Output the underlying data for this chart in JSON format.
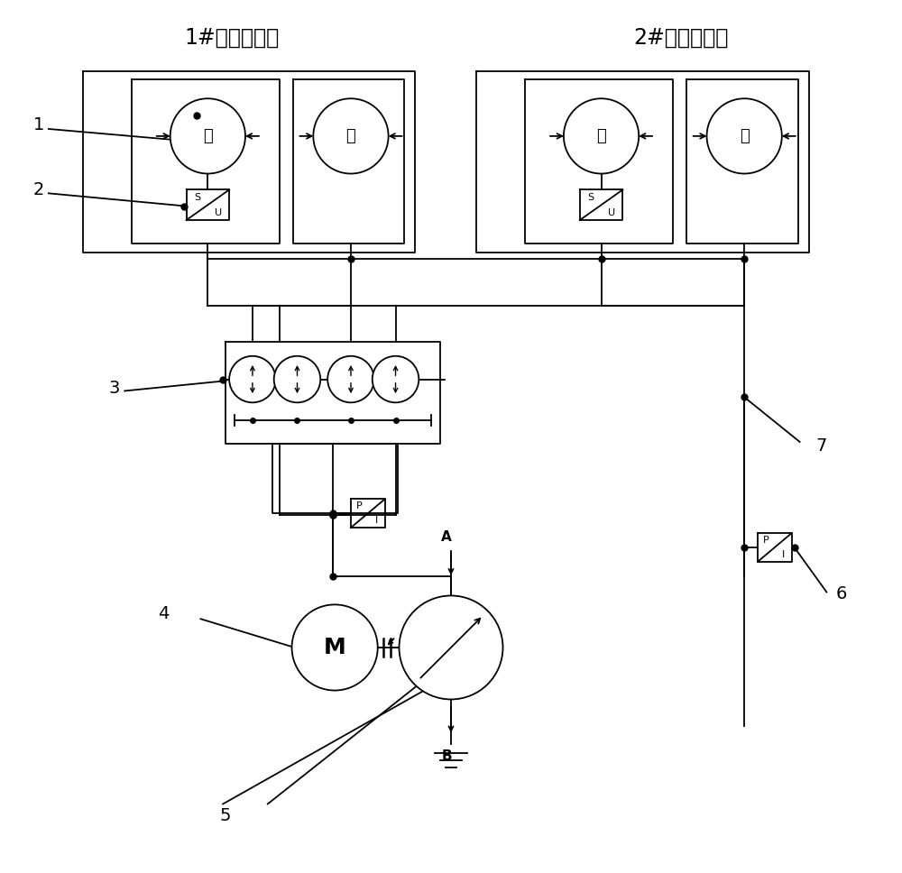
{
  "title1": "1#轮胎组驱动",
  "title2": "2#轮胎组驱动",
  "bg_color": "#ffffff",
  "line_color": "#000000",
  "label_1": "1",
  "label_2": "2",
  "label_3": "3",
  "label_4": "4",
  "label_5": "5",
  "label_6": "6",
  "label_7": "7",
  "char_shang": "上",
  "char_xia": "下",
  "char_M": "M",
  "char_A": "A",
  "char_B": "B"
}
